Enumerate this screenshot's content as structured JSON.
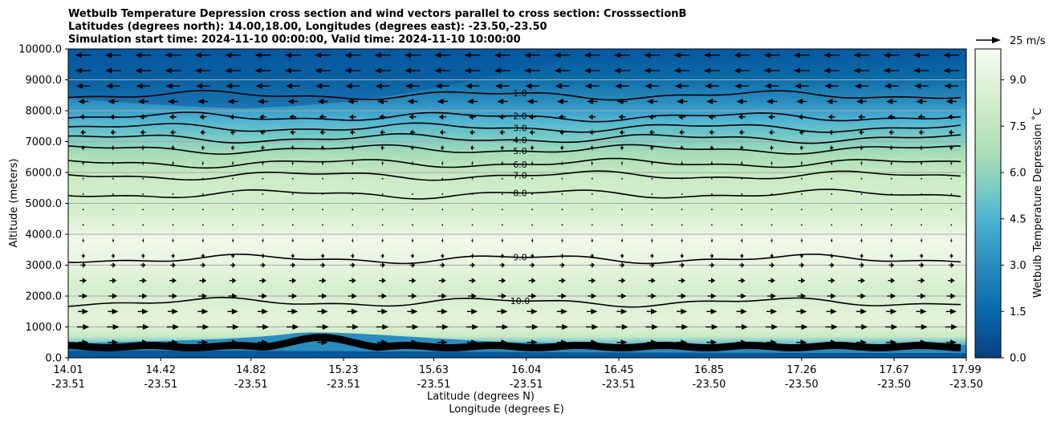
{
  "chart_data": {
    "type": "heatmap",
    "title_lines": [
      "Wetbulb Temperature Depression cross section and wind vectors parallel to cross section: CrosssectionB",
      "Latitudes (degrees north): 14.00,18.00, Longitudes (degrees east): -23.50,-23.50",
      "Simulation start time: 2024-11-10 00:00:00, Valid time: 2024-11-10 10:00:00"
    ],
    "ylabel": "Altitude (meters)",
    "xlabel": "Latitude (degrees N)",
    "xlabel2": "Longitude (degrees E)",
    "ylim": [
      0,
      10000
    ],
    "y_ticks": [
      "0.0",
      "1000.0",
      "2000.0",
      "3000.0",
      "4000.0",
      "5000.0",
      "6000.0",
      "7000.0",
      "8000.0",
      "9000.0",
      "10000.0"
    ],
    "x_ticks": [
      {
        "lat": "14.01",
        "lon": "-23.51"
      },
      {
        "lat": "14.42",
        "lon": "-23.51"
      },
      {
        "lat": "14.82",
        "lon": "-23.51"
      },
      {
        "lat": "15.23",
        "lon": "-23.51"
      },
      {
        "lat": "15.63",
        "lon": "-23.51"
      },
      {
        "lat": "16.04",
        "lon": "-23.51"
      },
      {
        "lat": "16.45",
        "lon": "-23.51"
      },
      {
        "lat": "16.85",
        "lon": "-23.50"
      },
      {
        "lat": "17.26",
        "lon": "-23.50"
      },
      {
        "lat": "17.67",
        "lon": "-23.50"
      },
      {
        "lat": "17.99",
        "lon": "-23.50"
      }
    ],
    "colorbar": {
      "label": "Wetbulb Temperature Depression ˚C",
      "range": [
        0,
        10
      ],
      "ticks": [
        "0.0",
        "1.5",
        "3.0",
        "4.5",
        "6.0",
        "7.5",
        "9.0"
      ]
    },
    "quiver_key": {
      "label": "25 m/s"
    },
    "contours": [
      {
        "level": 1.0,
        "label": "1.0",
        "alt_m": 8500
      },
      {
        "level": 2.0,
        "label": "2.0",
        "alt_m": 7800
      },
      {
        "level": 3.0,
        "label": "3.0",
        "alt_m": 7450
      },
      {
        "level": 4.0,
        "label": "4.0",
        "alt_m": 7100
      },
      {
        "level": 5.0,
        "label": "5.0",
        "alt_m": 6750
      },
      {
        "level": 6.0,
        "label": "6.0",
        "alt_m": 6300
      },
      {
        "level": 7.0,
        "label": "7.0",
        "alt_m": 5900
      },
      {
        "level": 8.0,
        "label": "8.0",
        "alt_m": 5300
      },
      {
        "level": 9.0,
        "label": "9.0",
        "alt_m": 3200
      },
      {
        "level": 10.0,
        "label": "10.0",
        "alt_m": 1800
      }
    ],
    "wind_rows": [
      {
        "alt_m": 9800,
        "dir": -1,
        "speed": 0.9
      },
      {
        "alt_m": 9300,
        "dir": -1,
        "speed": 0.9
      },
      {
        "alt_m": 8800,
        "dir": -1,
        "speed": 0.8
      },
      {
        "alt_m": 8300,
        "dir": -1,
        "speed": 0.6
      },
      {
        "alt_m": 7800,
        "dir": -1,
        "speed": 0.4
      },
      {
        "alt_m": 7300,
        "dir": -1,
        "speed": 0.3
      },
      {
        "alt_m": 6800,
        "dir": -1,
        "speed": 0.2
      },
      {
        "alt_m": 6300,
        "dir": -1,
        "speed": 0.1
      },
      {
        "alt_m": 5800,
        "dir": 0,
        "speed": 0.0
      },
      {
        "alt_m": 5300,
        "dir": 0,
        "speed": 0.0
      },
      {
        "alt_m": 4800,
        "dir": 0,
        "speed": 0.0
      },
      {
        "alt_m": 4300,
        "dir": 0,
        "speed": 0.0
      },
      {
        "alt_m": 3800,
        "dir": 1,
        "speed": 0.1
      },
      {
        "alt_m": 3300,
        "dir": 1,
        "speed": 0.2
      },
      {
        "alt_m": 3000,
        "dir": 1,
        "speed": 0.3
      },
      {
        "alt_m": 2500,
        "dir": 1,
        "speed": 0.4
      },
      {
        "alt_m": 2000,
        "dir": 1,
        "speed": 0.5
      },
      {
        "alt_m": 1500,
        "dir": 1,
        "speed": 0.6
      },
      {
        "alt_m": 1000,
        "dir": 1,
        "speed": 0.7
      },
      {
        "alt_m": 500,
        "dir": 1,
        "speed": 0.6
      }
    ]
  }
}
